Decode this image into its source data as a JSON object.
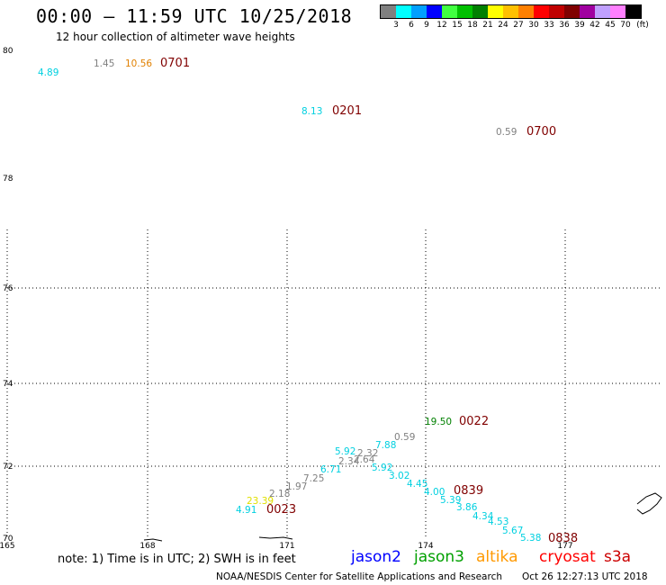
{
  "title": "00:00 – 11:59 UTC 10/25/2018",
  "subtitle": "12 hour collection of altimeter wave heights",
  "legend": {
    "colors": [
      "#808080",
      "#00ffff",
      "#00a0ff",
      "#0000ff",
      "#40ff40",
      "#00c000",
      "#008000",
      "#ffff00",
      "#ffc000",
      "#ff8000",
      "#ff0000",
      "#c00000",
      "#800000",
      "#a000a0",
      "#c0a0ff",
      "#ff80ff",
      "#000000"
    ],
    "ticks": [
      "3",
      "6",
      "9",
      "12",
      "15",
      "18",
      "21",
      "24",
      "27",
      "30",
      "33",
      "36",
      "39",
      "42",
      "45",
      "70"
    ],
    "unit": "(ft)"
  },
  "lat_labels": [
    "80",
    "78",
    "76",
    "74",
    "72",
    "70"
  ],
  "lon_labels": [
    "165",
    "168",
    "171",
    "174",
    "177"
  ],
  "colors": {
    "grey": "#808080",
    "cyan": "#00d0e0",
    "green": "#008000",
    "orange": "#e08000",
    "yellow": "#e0e000",
    "time": "#800000"
  },
  "readings": [
    {
      "text": "4.89",
      "color": "cyan"
    },
    {
      "text": "1.45",
      "color": "grey"
    },
    {
      "text": "10.56",
      "color": "orange"
    },
    {
      "text": "0701",
      "color": "time"
    },
    {
      "text": "8.13",
      "color": "cyan"
    },
    {
      "text": "0201",
      "color": "time"
    },
    {
      "text": "0.59",
      "color": "grey"
    },
    {
      "text": "0700",
      "color": "time"
    },
    {
      "text": "19.50",
      "color": "green"
    },
    {
      "text": "0022",
      "color": "time"
    },
    {
      "text": "0.59",
      "color": "grey"
    },
    {
      "text": "7.88",
      "color": "cyan"
    },
    {
      "text": "5.92",
      "color": "cyan"
    },
    {
      "text": "2.32",
      "color": "grey"
    },
    {
      "text": "2.34",
      "color": "grey"
    },
    {
      "text": "2.64",
      "color": "grey"
    },
    {
      "text": "6.71",
      "color": "cyan"
    },
    {
      "text": "5.92",
      "color": "cyan"
    },
    {
      "text": "3.02",
      "color": "cyan"
    },
    {
      "text": "7.25",
      "color": "grey"
    },
    {
      "text": "1.97",
      "color": "grey"
    },
    {
      "text": "4.45",
      "color": "cyan"
    },
    {
      "text": "2.18",
      "color": "grey"
    },
    {
      "text": "4.00",
      "color": "cyan"
    },
    {
      "text": "0839",
      "color": "time"
    },
    {
      "text": "23.39",
      "color": "yellow"
    },
    {
      "text": "5.39",
      "color": "cyan"
    },
    {
      "text": "4.91",
      "color": "cyan"
    },
    {
      "text": "0023",
      "color": "time"
    },
    {
      "text": "3.86",
      "color": "cyan"
    },
    {
      "text": "4.34",
      "color": "cyan"
    },
    {
      "text": "4.53",
      "color": "cyan"
    },
    {
      "text": "5.67",
      "color": "cyan"
    },
    {
      "text": "5.38",
      "color": "cyan"
    },
    {
      "text": "0838",
      "color": "time"
    }
  ],
  "footer": {
    "note": "note: 1) Time is in UTC; 2) SWH is in feet",
    "satellites": [
      {
        "name": "jason2",
        "color": "#0000ff"
      },
      {
        "name": "jason3",
        "color": "#00a000"
      },
      {
        "name": "altika",
        "color": "#ff9900"
      },
      {
        "name": "cryosat",
        "color": "#ff0000"
      },
      {
        "name": "s3a",
        "color": "#cc0000"
      }
    ],
    "credit": "NOAA/NESDIS Center for Satellite Applications and Research",
    "stamp": "Oct 26 12:27:13 UTC 2018"
  }
}
